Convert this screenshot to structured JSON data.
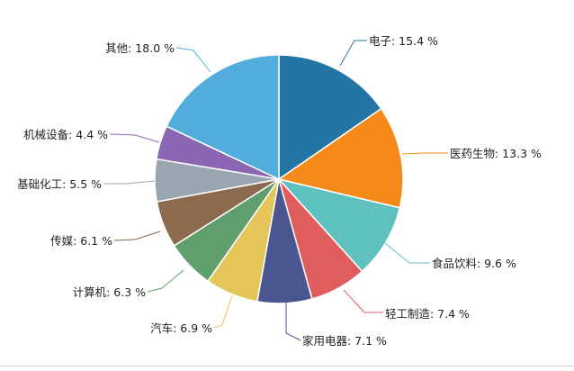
{
  "chart_data": {
    "type": "pie",
    "title": "",
    "slices": [
      {
        "label": "电子",
        "value": 15.4,
        "text": "电子: 15.4 %",
        "color": "#2376a4"
      },
      {
        "label": "医药生物",
        "value": 13.3,
        "text": "医药生物: 13.3 %",
        "color": "#f58a1a"
      },
      {
        "label": "食品饮料",
        "value": 9.6,
        "text": "食品饮料: 9.6 %",
        "color": "#5fc0c0"
      },
      {
        "label": "轻工制造",
        "value": 7.4,
        "text": "轻工制造: 7.4 %",
        "color": "#e05d5d"
      },
      {
        "label": "家用电器",
        "value": 7.1,
        "text": "家用电器: 7.1 %",
        "color": "#4a568f"
      },
      {
        "label": "汽车",
        "value": 6.9,
        "text": "汽车: 6.9 %",
        "color": "#e3c55a"
      },
      {
        "label": "计算机",
        "value": 6.3,
        "text": "计算机: 6.3 %",
        "color": "#5f9f6d"
      },
      {
        "label": "传媒",
        "value": 6.1,
        "text": "传媒: 6.1 %",
        "color": "#8b6a4d"
      },
      {
        "label": "基础化工",
        "value": 5.5,
        "text": "基础化工: 5.5 %",
        "color": "#9aa6af"
      },
      {
        "label": "机械设备",
        "value": 4.4,
        "text": "机械设备: 4.4 %",
        "color": "#8a66b3"
      },
      {
        "label": "其他",
        "value": 18.0,
        "text": "其他: 18.0 %",
        "color": "#52addd"
      }
    ]
  }
}
